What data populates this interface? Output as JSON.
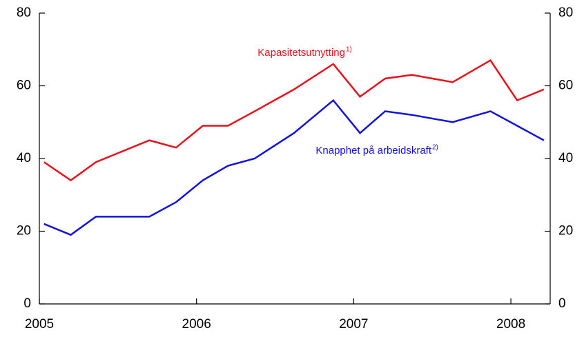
{
  "chart_data": {
    "type": "line",
    "x": [
      2005.03,
      2005.2,
      2005.36,
      2005.7,
      2005.87,
      2006.04,
      2006.2,
      2006.37,
      2006.62,
      2006.87,
      2007.04,
      2007.2,
      2007.37,
      2007.63,
      2007.87,
      2008.04,
      2008.21
    ],
    "series": [
      {
        "name": "Kapasitetsutnytting",
        "note": "1)",
        "color": "#e8111a",
        "values": [
          39,
          34,
          39,
          45,
          43,
          49,
          49,
          53,
          59,
          66,
          57,
          62,
          63,
          61,
          67,
          56,
          59
        ]
      },
      {
        "name": "Knapphet på arbeidskraft",
        "note": "2)",
        "color": "#1010e0",
        "values": [
          22,
          19,
          24,
          24,
          28,
          34,
          38,
          40,
          47,
          56,
          47,
          53,
          52,
          50,
          53,
          49,
          45
        ]
      }
    ],
    "xlim": [
      2005,
      2008.25
    ],
    "xticks": [
      2005,
      2006,
      2007,
      2008
    ],
    "ylim": [
      0,
      80
    ],
    "yticks": [
      0,
      20,
      40,
      60,
      80
    ],
    "y2lim": [
      0,
      80
    ],
    "y2ticks": [
      0,
      20,
      40,
      60,
      80
    ]
  }
}
